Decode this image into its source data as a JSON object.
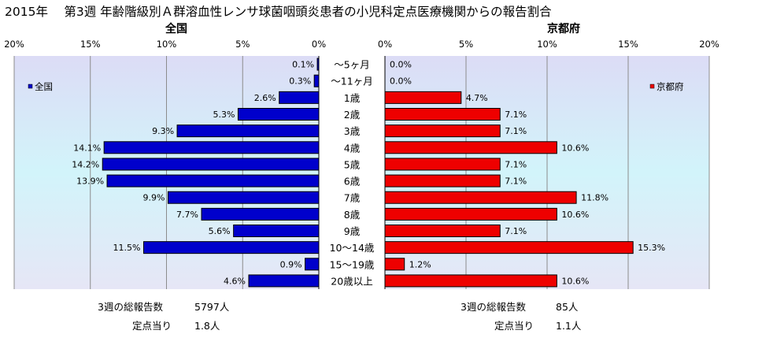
{
  "title": "2015年　 第3週 年齢階級別Ａ群溶血性レンサ球菌咽頭炎患者の小児科定点医療機関からの報告割合",
  "chart_data": {
    "type": "bar",
    "categories": [
      "～5ヶ月",
      "～11ヶ月",
      "1歳",
      "2歳",
      "3歳",
      "4歳",
      "5歳",
      "6歳",
      "7歳",
      "8歳",
      "9歳",
      "10～14歳",
      "15～19歳",
      "20歳以上"
    ],
    "x_tick_labels": [
      "0%",
      "5%",
      "10%",
      "15%",
      "20%"
    ],
    "xlim": [
      0,
      20
    ],
    "grid": true,
    "series": [
      {
        "name": "全国",
        "panel_title": "全国",
        "color": "#0000cc",
        "direction": "left",
        "values": [
          0.1,
          0.3,
          2.6,
          5.3,
          9.3,
          14.1,
          14.2,
          13.9,
          9.9,
          7.7,
          5.6,
          11.5,
          0.9,
          4.6
        ],
        "value_labels": [
          "0.1%",
          "0.3%",
          "2.6%",
          "5.3%",
          "9.3%",
          "14.1%",
          "14.2%",
          "13.9%",
          "9.9%",
          "7.7%",
          "5.6%",
          "11.5%",
          "0.9%",
          "4.6%"
        ],
        "legend_position": "top-left"
      },
      {
        "name": "京都府",
        "panel_title": "京都府",
        "color": "#ee0000",
        "direction": "right",
        "values": [
          0.0,
          0.0,
          4.7,
          7.1,
          7.1,
          10.6,
          7.1,
          7.1,
          11.8,
          10.6,
          7.1,
          15.3,
          1.2,
          10.6
        ],
        "value_labels": [
          "0.0%",
          "0.0%",
          "4.7%",
          "7.1%",
          "7.1%",
          "10.6%",
          "7.1%",
          "7.1%",
          "11.8%",
          "10.6%",
          "7.1%",
          "15.3%",
          "1.2%",
          "10.6%"
        ],
        "legend_position": "top-right"
      }
    ]
  },
  "summary": {
    "national": {
      "total_label": "3週の総報告数",
      "total_value": "5797人",
      "per_site_label": "定点当り",
      "per_site_value": "1.8人"
    },
    "kyoto": {
      "total_label": "3週の総報告数",
      "total_value": "85人",
      "per_site_label": "定点当り",
      "per_site_value": "1.1人"
    }
  }
}
